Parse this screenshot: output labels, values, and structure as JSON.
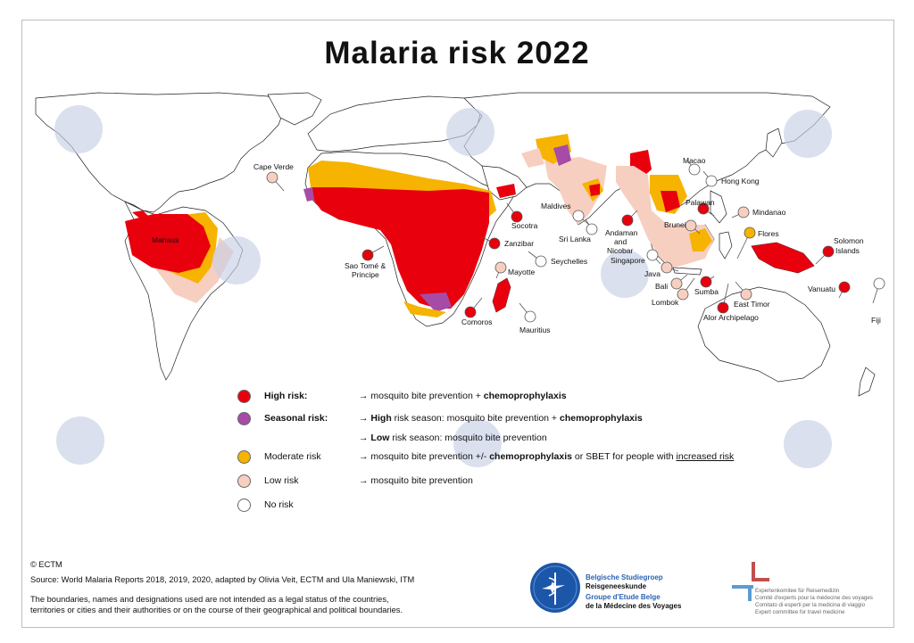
{
  "title": "Malaria risk 2022",
  "colors": {
    "high": "#e8000d",
    "seasonal": "#a64ca6",
    "moderate": "#f6b300",
    "low": "#f7cfc0",
    "none": "#ffffff",
    "logo_blue": "#1c56a8"
  },
  "map_labels": {
    "cape_verde": "Cape Verde",
    "sao_tome": "Sao Tomé &",
    "principe": "Principe",
    "socotra": "Socotra",
    "zanzibar": "Zanzibar",
    "seychelles": "Seychelles",
    "mayotte": "Mayotte",
    "comoros": "Comoros",
    "mauritius": "Mauritius",
    "maldives": "Maldives",
    "sri_lanka": "Sri Lanka",
    "andaman": "Andaman",
    "and": "and",
    "nicobar": "Nicobar",
    "macao": "Macao",
    "hong_kong": "Hong Kong",
    "palawan": "Palawan",
    "mindanao": "Mindanao",
    "brunei": "Brunei",
    "flores": "Flores",
    "singapore": "Singapore",
    "java": "Java",
    "bali": "Bali",
    "lombok": "Lombok",
    "sumba": "Sumba",
    "east_timor": "East Timor",
    "alor": "Alor Archipelago",
    "solomon": "Solomon",
    "islands": "Islands",
    "vanuatu": "Vanuatu",
    "fiji": "Fiji",
    "manaus": "Manaus"
  },
  "legend": [
    {
      "key": "high",
      "label": "High risk:",
      "bold": true,
      "desc_plain": "→ mosquito bite prevention + ",
      "desc_bold": "chemoprophylaxis"
    },
    {
      "key": "seasonal",
      "label": "Seasonal risk:",
      "bold": true,
      "desc_plain": "→ ",
      "desc_bold": "High",
      "desc_tail": " risk season: mosquito bite prevention + ",
      "desc_bold2": "chemoprophylaxis"
    },
    {
      "key": "seasonal_low",
      "desc_plain": "→ ",
      "desc_bold": "Low",
      "desc_tail": " risk season: mosquito bite prevention"
    },
    {
      "key": "moderate",
      "label": "Moderate risk",
      "desc_plain": "→ mosquito bite prevention +/- ",
      "desc_bold": "chemoprophylaxis",
      "desc_tail": " or SBET for people with ",
      "desc_underline": "increased risk"
    },
    {
      "key": "low",
      "label": "Low risk",
      "desc_plain": "→ mosquito bite prevention"
    },
    {
      "key": "none",
      "label": "No risk"
    }
  ],
  "footer": {
    "copyright": "© ECTM",
    "source": "Source: World Malaria Reports 2018, 2019, 2020, adapted by Olivia Veit, ECTM and Ula Maniewski, ITM",
    "disclaimer1": "The boundaries, names and designations used are not intended as a legal status of the countries,",
    "disclaimer2": "territories or cities and their authorities or on the course of their geographical and political boundaries."
  },
  "logo_left": {
    "line1": "Belgische Studiegroep",
    "line2": "Reisgeneeskunde",
    "line3": "Groupe d'Etude Belge",
    "line4": "de la Médecine des Voyages"
  },
  "logo_right": {
    "line1": "Expertenkomitee für Reisemedizin",
    "line2": "Comité d'experts pour la médecine des voyages",
    "line3": "Comitato di esperti per la medicina di viaggio",
    "line4": "Expert committee for travel medicine"
  }
}
